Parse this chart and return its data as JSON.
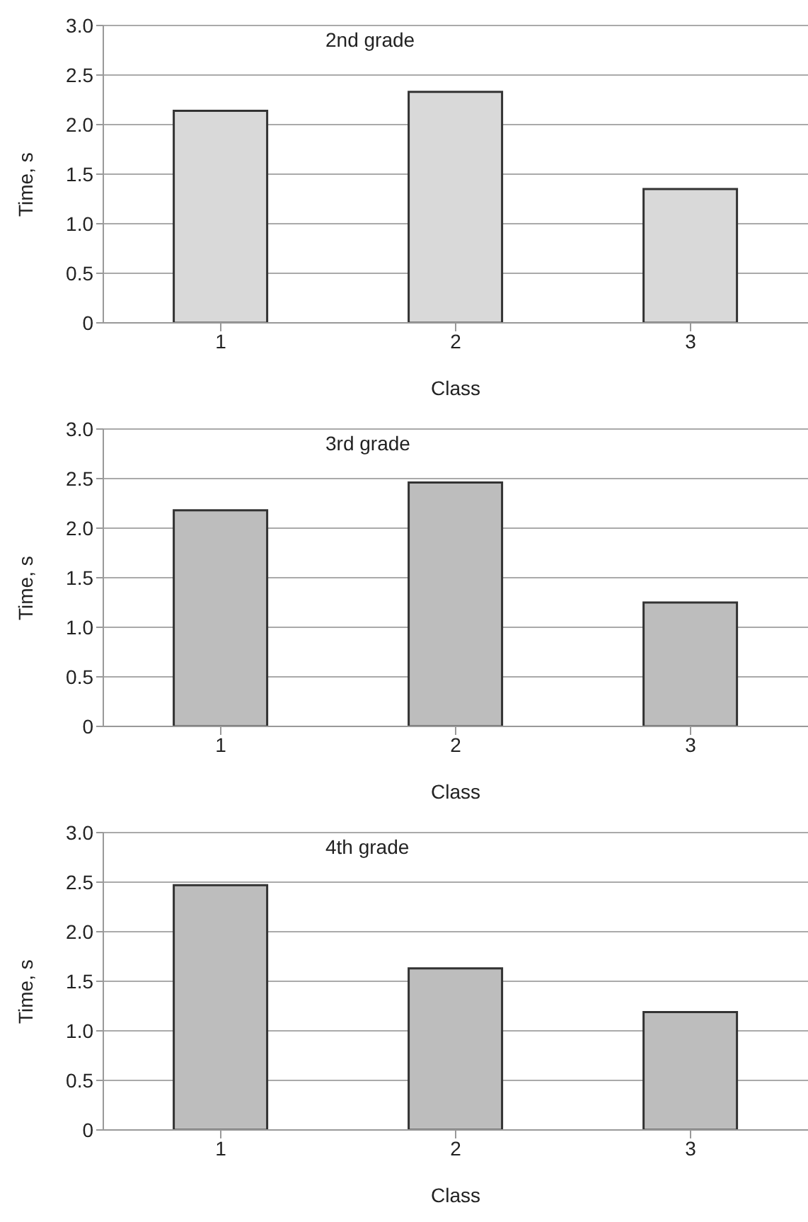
{
  "chart_data": [
    {
      "type": "bar",
      "title": "2nd grade",
      "xlabel": "Class",
      "ylabel": "Time, s",
      "categories": [
        "1",
        "2",
        "3"
      ],
      "values": [
        2.14,
        2.33,
        1.35
      ],
      "color": "#d9d9d9",
      "ylim": [
        0,
        3
      ],
      "yticks": [
        0,
        0.5,
        {
          "value": 1,
          "label": "1.0"
        },
        1.5,
        {
          "value": 2,
          "label": "2.0"
        },
        2.5,
        {
          "value": 3,
          "label": "3.0"
        }
      ],
      "grid": "y"
    },
    {
      "type": "bar",
      "title": "3rd grade",
      "xlabel": "Class",
      "ylabel": "Time, s",
      "categories": [
        "1",
        "2",
        "3"
      ],
      "values": [
        2.18,
        2.46,
        1.25
      ],
      "color": "#bdbdbd",
      "ylim": [
        0,
        3
      ],
      "yticks": [
        0,
        0.5,
        {
          "value": 1,
          "label": "1.0"
        },
        1.5,
        {
          "value": 2,
          "label": "2.0"
        },
        2.5,
        {
          "value": 3,
          "label": "3.0"
        }
      ],
      "grid": "y"
    },
    {
      "type": "bar",
      "title": "4th grade",
      "xlabel": "Class",
      "ylabel": "Time, s",
      "categories": [
        "1",
        "2",
        "3"
      ],
      "values": [
        2.47,
        1.63,
        1.19
      ],
      "color": "#bdbdbd",
      "ylim": [
        0,
        3
      ],
      "yticks": [
        0,
        0.5,
        {
          "value": 1,
          "label": "1.0"
        },
        1.5,
        {
          "value": 2,
          "label": "2.0"
        },
        2.5,
        {
          "value": 3,
          "label": "3.0"
        }
      ],
      "grid": "y"
    }
  ]
}
